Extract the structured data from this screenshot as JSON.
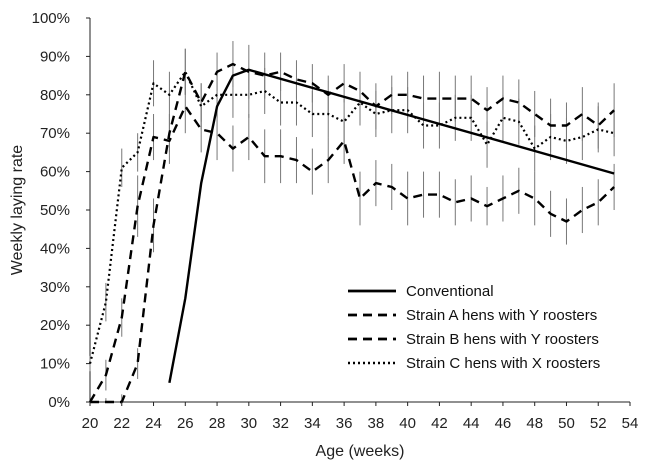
{
  "chart_data": {
    "type": "line",
    "xlabel": "Age (weeks)",
    "ylabel": "Weekly laying rate",
    "xlim": [
      20,
      54
    ],
    "ylim": [
      0,
      100
    ],
    "x_ticks": [
      "20",
      "22",
      "24",
      "26",
      "28",
      "30",
      "32",
      "34",
      "36",
      "38",
      "40",
      "42",
      "44",
      "46",
      "48",
      "50",
      "52",
      "54"
    ],
    "y_ticks": [
      "0%",
      "10%",
      "20%",
      "30%",
      "40%",
      "50%",
      "60%",
      "70%",
      "80%",
      "90%",
      "100%"
    ],
    "grid": false,
    "legend_position": "bottom-right",
    "series": [
      {
        "name": "Conventional",
        "style": "solid",
        "x": [
          25,
          26,
          27,
          28,
          29,
          30,
          53
        ],
        "y": [
          5,
          27,
          57,
          77,
          85,
          86.5,
          59.5
        ]
      },
      {
        "name": "Strain A hens with Y roosters",
        "style": "dashed",
        "x": [
          20,
          21,
          22,
          23,
          24,
          25,
          26,
          27,
          28,
          29,
          30,
          31,
          32,
          33,
          34,
          35,
          36,
          37,
          38,
          39,
          40,
          41,
          42,
          43,
          44,
          45,
          46,
          47,
          48,
          49,
          50,
          51,
          52,
          53
        ],
        "y": [
          0,
          0,
          0,
          10,
          46,
          70,
          86,
          78,
          86,
          88,
          86,
          85,
          86,
          84,
          83,
          80,
          83,
          81,
          77,
          80,
          80,
          79,
          79,
          79,
          79,
          76,
          79,
          78,
          75,
          72,
          72,
          75,
          72,
          76
        ],
        "err": [
          0,
          1,
          2,
          4,
          7,
          5,
          6,
          5,
          5,
          6,
          7,
          6,
          5,
          5,
          5,
          5,
          5,
          5,
          6,
          5,
          6,
          6,
          7,
          6,
          6,
          6,
          6,
          6,
          6,
          7,
          6,
          7,
          6,
          7
        ]
      },
      {
        "name": "Strain B hens with Y roosters",
        "style": "dashed",
        "x": [
          20,
          21,
          22,
          23,
          24,
          25,
          26,
          27,
          28,
          29,
          30,
          31,
          32,
          33,
          34,
          35,
          36,
          37,
          38,
          39,
          40,
          41,
          42,
          43,
          44,
          45,
          46,
          47,
          48,
          49,
          50,
          51,
          52,
          53
        ],
        "y": [
          0,
          7,
          22,
          51,
          69,
          68,
          77,
          71,
          70,
          66,
          69,
          64,
          64,
          63,
          60,
          63,
          68,
          53,
          57,
          56,
          53,
          54,
          54,
          52,
          53,
          51,
          53,
          55,
          53,
          49,
          47,
          50,
          52,
          56
        ],
        "err": [
          0,
          4,
          5,
          8,
          6,
          6,
          7,
          6,
          7,
          6,
          6,
          7,
          7,
          6,
          6,
          6,
          6,
          7,
          6,
          6,
          7,
          6,
          6,
          6,
          6,
          5,
          6,
          6,
          7,
          6,
          6,
          6,
          6,
          6
        ]
      },
      {
        "name": "Strain C hens with X roosters",
        "style": "dotted",
        "x": [
          20,
          21,
          22,
          23,
          24,
          25,
          26,
          27,
          28,
          29,
          30,
          31,
          32,
          33,
          34,
          35,
          36,
          37,
          38,
          39,
          40,
          41,
          42,
          43,
          44,
          45,
          46,
          47,
          48,
          49,
          50,
          51,
          52,
          53
        ],
        "y": [
          10,
          26,
          61,
          65,
          83,
          80,
          86,
          77,
          80,
          80,
          80,
          81,
          78,
          78,
          75,
          75,
          73,
          78,
          75,
          76,
          76,
          72,
          72,
          74,
          74,
          67,
          74,
          73,
          66,
          69,
          68,
          69,
          71,
          70
        ],
        "err": [
          2,
          5,
          5,
          5,
          6,
          6,
          6,
          6,
          6,
          6,
          6,
          6,
          6,
          6,
          6,
          6,
          6,
          6,
          6,
          6,
          6,
          6,
          6,
          6,
          6,
          6,
          6,
          6,
          6,
          6,
          6,
          6,
          6,
          6
        ]
      }
    ]
  }
}
